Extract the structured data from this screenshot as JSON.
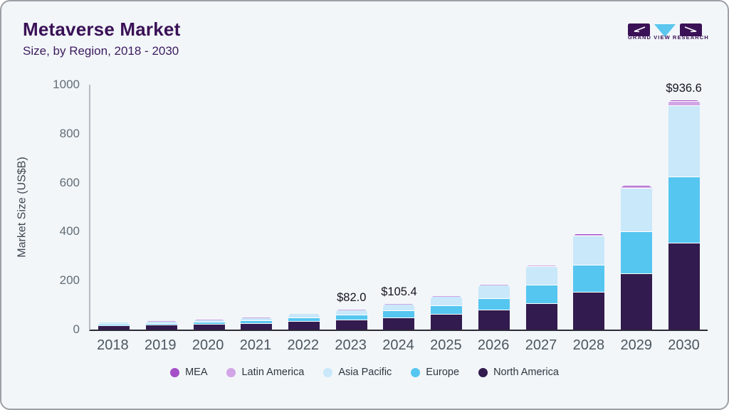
{
  "card": {
    "title": "Metaverse Market",
    "subtitle": "Size, by Region, 2018 - 2030",
    "logo_text": "GRAND VIEW RESEARCH"
  },
  "chart_data": {
    "type": "bar",
    "stacked": true,
    "title": "Metaverse Market Size, by Region, 2018 - 2030",
    "ylabel": "Market Size (US$B)",
    "ylim": [
      0,
      1000
    ],
    "yticks": [
      0,
      200,
      400,
      600,
      800,
      1000
    ],
    "grid": false,
    "legend_position": "bottom",
    "categories": [
      "2018",
      "2019",
      "2020",
      "2021",
      "2022",
      "2023",
      "2024",
      "2025",
      "2026",
      "2027",
      "2028",
      "2029",
      "2030"
    ],
    "series": [
      {
        "name": "North America",
        "color": "#321b4e",
        "values": [
          15,
          17,
          20,
          24,
          32,
          38.5,
          47.5,
          61,
          78,
          106,
          152,
          228,
          353
        ]
      },
      {
        "name": "Europe",
        "color": "#55c6f0",
        "values": [
          6,
          7,
          8,
          10,
          14,
          20,
          28.5,
          34,
          46,
          74,
          111,
          170,
          268
        ]
      },
      {
        "name": "Asia Pacific",
        "color": "#c9e8f9",
        "values": [
          7,
          9,
          11,
          13,
          17,
          21,
          27,
          38,
          55,
          76,
          118,
          178,
          293
        ]
      },
      {
        "name": "Latin America",
        "color": "#d2a5e6",
        "values": [
          0.6,
          0.7,
          0.9,
          1.1,
          1.4,
          1.7,
          1.5,
          2.5,
          3.5,
          4.5,
          6,
          9,
          15
        ]
      },
      {
        "name": "MEA",
        "color": "#a44fc8",
        "values": [
          0.3,
          0.35,
          0.45,
          0.55,
          0.7,
          0.8,
          0.9,
          1,
          1.5,
          2,
          2.5,
          3.5,
          7.6
        ]
      }
    ],
    "totals": [
      28.9,
      34.05,
      40.35,
      48.65,
      65.1,
      82.0,
      105.4,
      136.5,
      184.0,
      262.5,
      389.5,
      588.5,
      936.6
    ],
    "value_labels": {
      "2023": "$82.0",
      "2024": "$105.4",
      "2030": "$936.6"
    },
    "legend_order": [
      "MEA",
      "Latin America",
      "Asia Pacific",
      "Europe",
      "North America"
    ]
  }
}
